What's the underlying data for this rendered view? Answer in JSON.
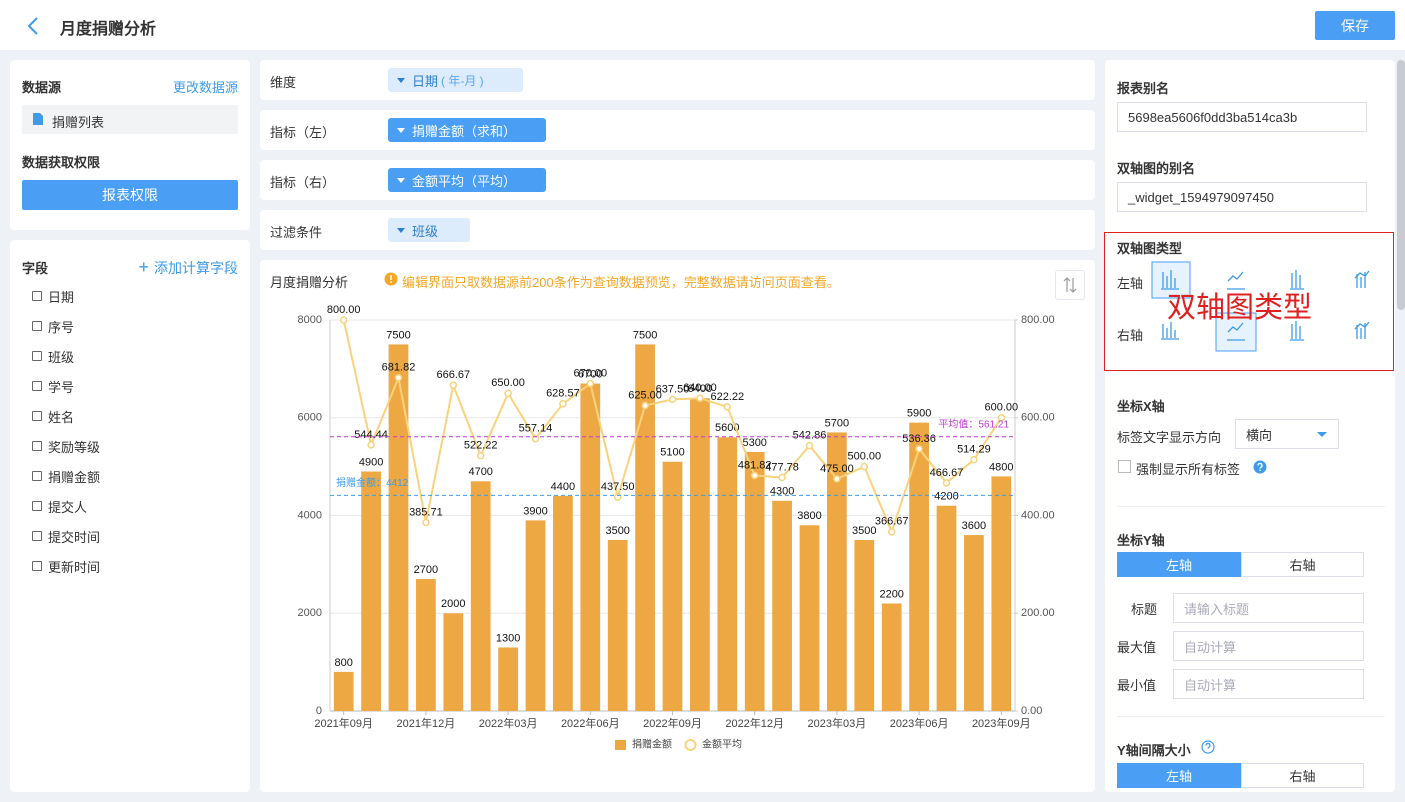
{
  "header": {
    "title": "月度捐赠分析",
    "save": "保存"
  },
  "left_panel": {
    "source_title": "数据源",
    "change_source": "更改数据源",
    "source_name": "捐赠列表",
    "permission_title": "数据获取权限",
    "permission_button": "报表权限",
    "fields_title": "字段",
    "add_field": "添加计算字段",
    "fields": [
      "日期",
      "序号",
      "班级",
      "学号",
      "姓名",
      "奖励等级",
      "捐赠金额",
      "提交人",
      "提交时间",
      "更新时间"
    ]
  },
  "config_rows": [
    {
      "label": "维度",
      "chip": "日期",
      "chip_note": "( 年-月 )"
    },
    {
      "label": "指标（左）",
      "chip": "捐赠金额（求和）"
    },
    {
      "label": "指标（右）",
      "chip": "金额平均（平均）"
    },
    {
      "label": "过滤条件",
      "chip": "班级"
    }
  ],
  "chart_panel": {
    "notice": "编辑界面只取数据源前200条作为查询数据预览，完整数据请访问页面查看。"
  },
  "chart_data": {
    "type": "combo",
    "title": "月度捐赠分析",
    "categories": [
      "2021年09月",
      null,
      null,
      "2021年12月",
      null,
      null,
      "2022年03月",
      null,
      null,
      "2022年06月",
      null,
      null,
      "2022年09月",
      null,
      null,
      "2022年12月",
      null,
      null,
      "2023年03月",
      null,
      null,
      "2023年06月",
      null,
      null,
      "2023年09月"
    ],
    "series": [
      {
        "name": "捐赠金额",
        "type": "bar",
        "color": "#eda843",
        "axis": "y",
        "values": [
          800,
          4900,
          7500,
          2700,
          2000,
          4700,
          1300,
          3900,
          4400,
          6700,
          3500,
          7500,
          5100,
          6400,
          5600,
          5300,
          4300,
          3800,
          5700,
          3500,
          2200,
          5900,
          4200,
          3600,
          4800
        ]
      },
      {
        "name": "金额平均",
        "type": "line",
        "color": "#f8d27c",
        "axis": "y2",
        "values": [
          800,
          544.44,
          681.82,
          385.71,
          666.67,
          522.22,
          650,
          557.14,
          628.57,
          670,
          437.5,
          625,
          637.5,
          640,
          622.22,
          481.82,
          477.78,
          542.86,
          475,
          500,
          366.67,
          536.36,
          466.67,
          514.29,
          600
        ],
        "value_labels": [
          "800.00",
          "544.44",
          "681.82",
          "385.71",
          "666.67",
          "522.22",
          "650.00",
          "557.14",
          "628.57",
          "670.00",
          "437.50",
          "625.00",
          "637.50",
          "640.00",
          "622.22",
          "481.82",
          "477.78",
          "542.86",
          "475.00",
          "500.00",
          "366.67",
          "536.36",
          "466.67",
          "514.29",
          "600.00"
        ]
      }
    ],
    "ylim": [
      0,
      8000
    ],
    "yticks": [
      0,
      2000,
      4000,
      6000,
      8000
    ],
    "y2lim": [
      0,
      800
    ],
    "y2ticks": [
      {
        "value": 0,
        "label": "0.00"
      },
      {
        "value": 200,
        "label": "200.00"
      },
      {
        "value": 400,
        "label": "400.00"
      },
      {
        "value": 600,
        "label": "600.00"
      },
      {
        "value": 800,
        "label": "800.00"
      }
    ],
    "grid": true,
    "legend": "bottom",
    "annotations": [
      {
        "label": "捐赠金额：4412",
        "value": 4412,
        "axis": "y",
        "color": "#3d9be9"
      },
      {
        "label": "平均值：561.21",
        "value": 561.21,
        "axis": "y2",
        "color": "#c13ad6"
      }
    ]
  },
  "right_panel": {
    "alias_title": "报表别名",
    "alias_value": "5698ea5606f0dd3ba514ca3b",
    "widget_alias_title": "双轴图的别名",
    "widget_alias_value": "_widget_1594979097450",
    "type_title": "双轴图类型",
    "left_axis": "左轴",
    "right_axis": "右轴",
    "callout": "双轴图类型",
    "x_axis_title": "坐标X轴",
    "label_direction": "标签文字显示方向",
    "direction_value": "横向",
    "force_labels": "强制显示所有标签",
    "y_axis_title": "坐标Y轴",
    "y_tabs": [
      "左轴",
      "右轴"
    ],
    "y_fields": [
      {
        "label": "标题",
        "placeholder": "请输入标题"
      },
      {
        "label": "最大值",
        "placeholder": "自动计算"
      },
      {
        "label": "最小值",
        "placeholder": "自动计算"
      }
    ],
    "interval_title": "Y轴间隔大小",
    "interval_tabs": [
      "左轴",
      "右轴"
    ]
  }
}
